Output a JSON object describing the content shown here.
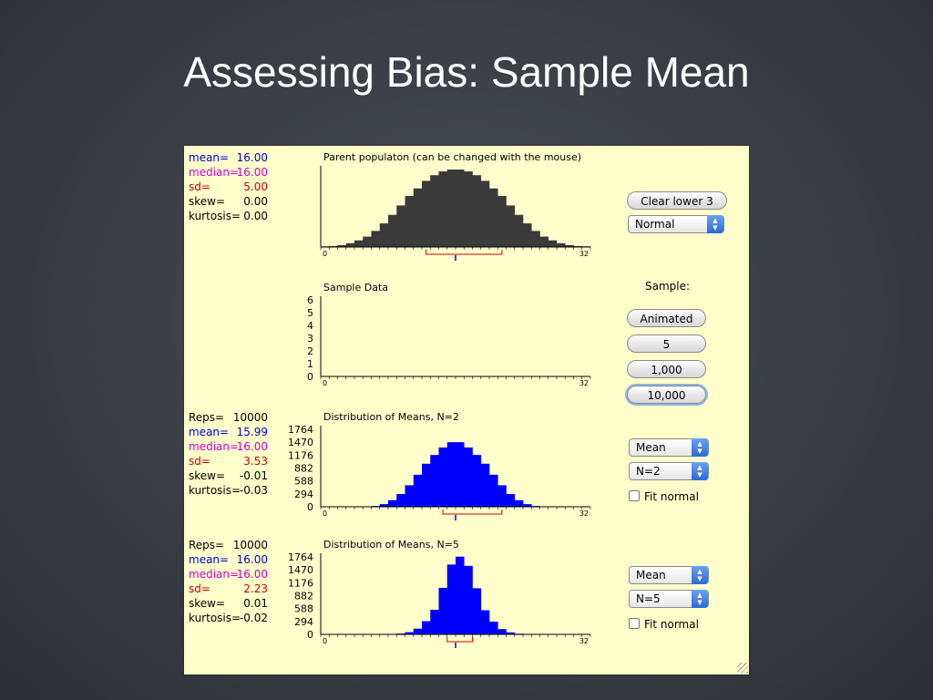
{
  "slide": {
    "title": "Assessing Bias: Sample Mean"
  },
  "parent": {
    "title": "Parent populaton (can be changed with the mouse)",
    "stats": [
      {
        "label": "mean=",
        "value": "16.00",
        "color": "#0000cc"
      },
      {
        "label": "median=",
        "value": "16.00",
        "color": "#cc00cc"
      },
      {
        "label": "sd=",
        "value": "5.00",
        "color": "#cc0000"
      },
      {
        "label": "skew=",
        "value": "0.00",
        "color": "#000000"
      },
      {
        "label": "kurtosis=",
        "value": "0.00",
        "color": "#000000"
      }
    ],
    "x_min_label": "0",
    "x_max_label": "32"
  },
  "sample": {
    "title": "Sample Data",
    "y_ticks": [
      "0",
      "1",
      "2",
      "3",
      "4",
      "5",
      "6"
    ],
    "x_min_label": "0",
    "x_max_label": "32"
  },
  "dist2": {
    "title": "Distribution of Means, N=2",
    "stats": [
      {
        "label": "Reps=",
        "value": "10000",
        "color": "#000000"
      },
      {
        "label": "mean=",
        "value": "15.99",
        "color": "#0000cc"
      },
      {
        "label": "median=",
        "value": "16.00",
        "color": "#cc00cc"
      },
      {
        "label": "sd=",
        "value": "3.53",
        "color": "#cc0000"
      },
      {
        "label": "skew=",
        "value": "-0.01",
        "color": "#000000"
      },
      {
        "label": "kurtosis=",
        "value": "-0.03",
        "color": "#000000"
      }
    ],
    "y_ticks": [
      "0",
      "294",
      "588",
      "882",
      "1176",
      "1470",
      "1764"
    ],
    "x_min_label": "0",
    "x_max_label": "32"
  },
  "dist5": {
    "title": "Distribution of Means, N=5",
    "stats": [
      {
        "label": "Reps=",
        "value": "10000",
        "color": "#000000"
      },
      {
        "label": "mean=",
        "value": "16.00",
        "color": "#0000cc"
      },
      {
        "label": "median=",
        "value": "16.00",
        "color": "#cc00cc"
      },
      {
        "label": "sd=",
        "value": "2.23",
        "color": "#cc0000"
      },
      {
        "label": "skew=",
        "value": "0.01",
        "color": "#000000"
      },
      {
        "label": "kurtosis=",
        "value": "-0.02",
        "color": "#000000"
      }
    ],
    "y_ticks": [
      "0",
      "294",
      "588",
      "882",
      "1176",
      "1470",
      "1764"
    ],
    "x_min_label": "0",
    "x_max_label": "32"
  },
  "controls": {
    "clear_label": "Clear lower 3",
    "population_select": "Normal",
    "sample_heading": "Sample:",
    "animated_label": "Animated",
    "five_label": "5",
    "thousand_label": "1,000",
    "tenthousand_label": "10,000",
    "dist2_stat_select": "Mean",
    "dist2_n_select": "N=2",
    "dist2_fit_label": "Fit normal",
    "dist5_stat_select": "Mean",
    "dist5_n_select": "N=5",
    "dist5_fit_label": "Fit normal"
  },
  "colors": {
    "parent_bars": "#3a3a3a",
    "means_bars": "#0000ff",
    "interval_marker": "#cc0000",
    "mean_tick": "#0000cc",
    "applet_background": "#ffffcc"
  },
  "chart_data": [
    {
      "type": "bar",
      "title": "Parent populaton (can be changed with the mouse)",
      "x_range": [
        0,
        32
      ],
      "bin_width": 1,
      "values": [
        0.35,
        0.5,
        1,
        2,
        3.5,
        5.5,
        8.5,
        12.5,
        17,
        22,
        27,
        31,
        35,
        38,
        40,
        41,
        41,
        40,
        38,
        35,
        31,
        27,
        22,
        17,
        12.5,
        8.5,
        5.5,
        3.5,
        2,
        1,
        0.5,
        0.35
      ],
      "y_max": 41,
      "interval": [
        12.5,
        21.5
      ],
      "mean_marker": 16
    },
    {
      "type": "bar",
      "title": "Sample Data",
      "x_range": [
        0,
        32
      ],
      "ylim": [
        0,
        6
      ],
      "values": []
    },
    {
      "type": "bar",
      "title": "Distribution of Means, N=2",
      "x_range": [
        0,
        32
      ],
      "bin_width": 1,
      "ylim": [
        0,
        1764
      ],
      "values": [
        0,
        0,
        0,
        0,
        0,
        2,
        18,
        60,
        150,
        290,
        490,
        730,
        980,
        1180,
        1350,
        1470,
        1470,
        1350,
        1180,
        980,
        730,
        490,
        290,
        150,
        60,
        18,
        2,
        0,
        0,
        0,
        0,
        0
      ],
      "interval": [
        14.5,
        21.5
      ],
      "mean_marker": 16
    },
    {
      "type": "bar",
      "title": "Distribution of Means, N=5",
      "x_range": [
        0,
        32
      ],
      "bin_width": 1,
      "ylim": [
        0,
        1764
      ],
      "values": [
        0,
        0,
        0,
        0,
        0,
        0,
        0,
        0,
        0,
        20,
        50,
        130,
        300,
        560,
        1060,
        1590,
        1770,
        1560,
        1050,
        550,
        290,
        120,
        45,
        15,
        0,
        0,
        0,
        0,
        0,
        0,
        0,
        0
      ],
      "interval": [
        15,
        18
      ],
      "mean_marker": 16
    }
  ]
}
